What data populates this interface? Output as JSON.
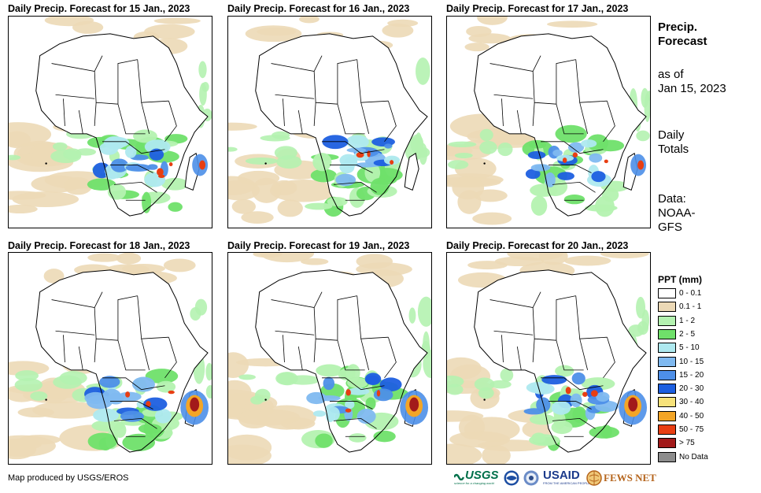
{
  "panels": [
    {
      "title": "Daily Precip. Forecast for 15 Jan., 2023",
      "heavy": "east"
    },
    {
      "title": "Daily Precip. Forecast for 16 Jan., 2023",
      "heavy": "south"
    },
    {
      "title": "Daily Precip. Forecast for 17 Jan., 2023",
      "heavy": "east"
    },
    {
      "title": "Daily Precip. Forecast for 18 Jan., 2023",
      "heavy": "madagascar"
    },
    {
      "title": "Daily Precip. Forecast for 19 Jan., 2023",
      "heavy": "madagascar"
    },
    {
      "title": "Daily Precip. Forecast for 20 Jan., 2023",
      "heavy": "madagascar"
    }
  ],
  "side": {
    "heading_line1": "Precip.",
    "heading_line2": "Forecast",
    "asof_line1": "as of",
    "asof_line2": "Jan 15, 2023",
    "totals_line1": "Daily",
    "totals_line2": "Totals",
    "data_line1": "Data:",
    "data_line2": "NOAA-",
    "data_line3": "GFS"
  },
  "legend": {
    "title": "PPT (mm)",
    "items": [
      {
        "label": "0 - 0.1",
        "color": "#ffffff"
      },
      {
        "label": "0.1 - 1",
        "color": "#ecd9b6"
      },
      {
        "label": "1 - 2",
        "color": "#b4f2b0"
      },
      {
        "label": "2 - 5",
        "color": "#6fe06a"
      },
      {
        "label": "5 - 10",
        "color": "#aee9ef"
      },
      {
        "label": "10 - 15",
        "color": "#7fb9f0"
      },
      {
        "label": "15 - 20",
        "color": "#4d8fe8"
      },
      {
        "label": "20 - 30",
        "color": "#1d5fe0"
      },
      {
        "label": "30 - 40",
        "color": "#f7e27a"
      },
      {
        "label": "40 - 50",
        "color": "#f3a526"
      },
      {
        "label": "50 - 75",
        "color": "#e83e12"
      },
      {
        "label": "> 75",
        "color": "#a21a1a"
      },
      {
        "label": "No Data",
        "color": "#8c8c8c"
      }
    ]
  },
  "credit": "Map produced by USGS/EROS",
  "logos": {
    "usgs": "USGS",
    "usgs_tagline": "science for a changing world",
    "usaid": "USAID",
    "usaid_tagline": "FROM THE AMERICAN PEOPLE",
    "fews": "FEWS NET"
  }
}
